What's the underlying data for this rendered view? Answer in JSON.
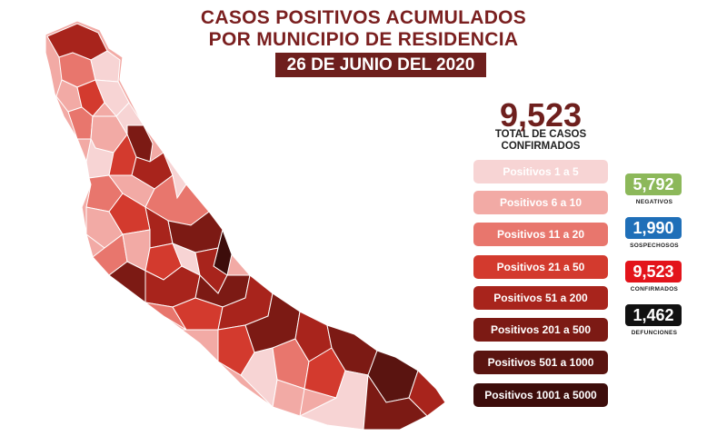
{
  "header": {
    "title_line1": "CASOS POSITIVOS ACUMULADOS",
    "title_line2": "POR MUNICIPIO DE RESIDENCIA",
    "date": "26 DE JUNIO DEL 2020"
  },
  "total": {
    "value": "9,523",
    "label_line1": "TOTAL DE CASOS",
    "label_line2": "CONFIRMADOS"
  },
  "legend": [
    {
      "label": "Positivos 1 a 5",
      "color": "#f7d4d4",
      "text_color": "#ffffff"
    },
    {
      "label": "Positivos 6 a 10",
      "color": "#f2aaa5",
      "text_color": "#ffffff"
    },
    {
      "label": "Positivos 11 a 20",
      "color": "#e8766d",
      "text_color": "#ffffff"
    },
    {
      "label": "Positivos 21 a 50",
      "color": "#d33a2e",
      "text_color": "#ffffff"
    },
    {
      "label": "Positivos 51 a 200",
      "color": "#a8241c",
      "text_color": "#ffffff"
    },
    {
      "label": "Positivos 201 a 500",
      "color": "#7c1a14",
      "text_color": "#ffffff"
    },
    {
      "label": "Positivos 501 a 1000",
      "color": "#5a1410",
      "text_color": "#ffffff"
    },
    {
      "label": "Positivos 1001 a 5000",
      "color": "#3d0d0b",
      "text_color": "#ffffff"
    }
  ],
  "stats": [
    {
      "value": "5,792",
      "label": "NEGATIVOS",
      "color": "#8cb85a"
    },
    {
      "value": "1,990",
      "label": "SOSPECHOSOS",
      "color": "#1f6fb8"
    },
    {
      "value": "9,523",
      "label": "CONFIRMADOS",
      "color": "#e3141b"
    },
    {
      "value": "1,462",
      "label": "DEFUNCIONES",
      "color": "#111111"
    }
  ]
}
